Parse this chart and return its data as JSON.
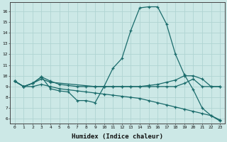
{
  "title": "",
  "xlabel": "Humidex (Indice chaleur)",
  "ylabel": "",
  "bg_color": "#cce8e6",
  "grid_color": "#b0d4d2",
  "line_color": "#1a6b6b",
  "xlim": [
    -0.5,
    23.5
  ],
  "ylim": [
    5.6,
    16.8
  ],
  "yticks": [
    6,
    7,
    8,
    9,
    10,
    11,
    12,
    13,
    14,
    15,
    16
  ],
  "xticks": [
    0,
    1,
    2,
    3,
    4,
    5,
    6,
    7,
    8,
    9,
    10,
    11,
    12,
    13,
    14,
    15,
    16,
    17,
    18,
    19,
    20,
    21,
    22,
    23
  ],
  "series": [
    {
      "x": [
        0,
        1,
        2,
        3,
        4,
        5,
        6,
        7,
        8,
        9,
        10,
        11,
        12,
        13,
        14,
        15,
        16,
        17,
        18,
        19,
        20,
        21,
        22,
        23
      ],
      "y": [
        9.5,
        9.0,
        9.3,
        9.9,
        8.8,
        8.6,
        8.5,
        7.7,
        7.7,
        7.5,
        9.0,
        10.7,
        11.6,
        14.2,
        16.3,
        16.4,
        16.4,
        14.8,
        12.0,
        10.1,
        8.7,
        7.0,
        6.3,
        5.8
      ]
    },
    {
      "x": [
        0,
        1,
        2,
        3,
        4,
        5,
        6,
        7,
        8,
        9,
        10,
        11,
        12,
        13,
        14,
        15,
        16,
        17,
        18,
        19,
        20,
        21,
        22,
        23
      ],
      "y": [
        9.5,
        9.0,
        9.3,
        9.9,
        9.5,
        9.2,
        9.1,
        9.0,
        9.0,
        9.0,
        9.0,
        9.0,
        9.0,
        9.0,
        9.0,
        9.1,
        9.2,
        9.4,
        9.6,
        10.0,
        10.0,
        9.7,
        9.0,
        9.0
      ]
    },
    {
      "x": [
        0,
        1,
        2,
        3,
        4,
        9,
        10,
        11,
        12,
        13,
        14,
        15,
        16,
        17,
        18,
        19,
        20,
        21,
        22,
        23
      ],
      "y": [
        9.5,
        9.0,
        9.3,
        9.7,
        9.4,
        9.0,
        9.0,
        9.0,
        9.0,
        9.0,
        9.0,
        9.0,
        9.0,
        9.0,
        9.0,
        9.3,
        9.7,
        9.0,
        9.0,
        9.0
      ]
    },
    {
      "x": [
        0,
        1,
        2,
        3,
        4,
        5,
        6,
        7,
        8,
        9,
        10,
        11,
        12,
        13,
        14,
        15,
        16,
        17,
        18,
        19,
        20,
        21,
        22,
        23
      ],
      "y": [
        9.5,
        9.0,
        9.0,
        9.2,
        9.0,
        8.8,
        8.7,
        8.6,
        8.5,
        8.4,
        8.3,
        8.2,
        8.1,
        8.0,
        7.9,
        7.7,
        7.5,
        7.3,
        7.1,
        6.9,
        6.7,
        6.5,
        6.3,
        5.9
      ]
    }
  ]
}
